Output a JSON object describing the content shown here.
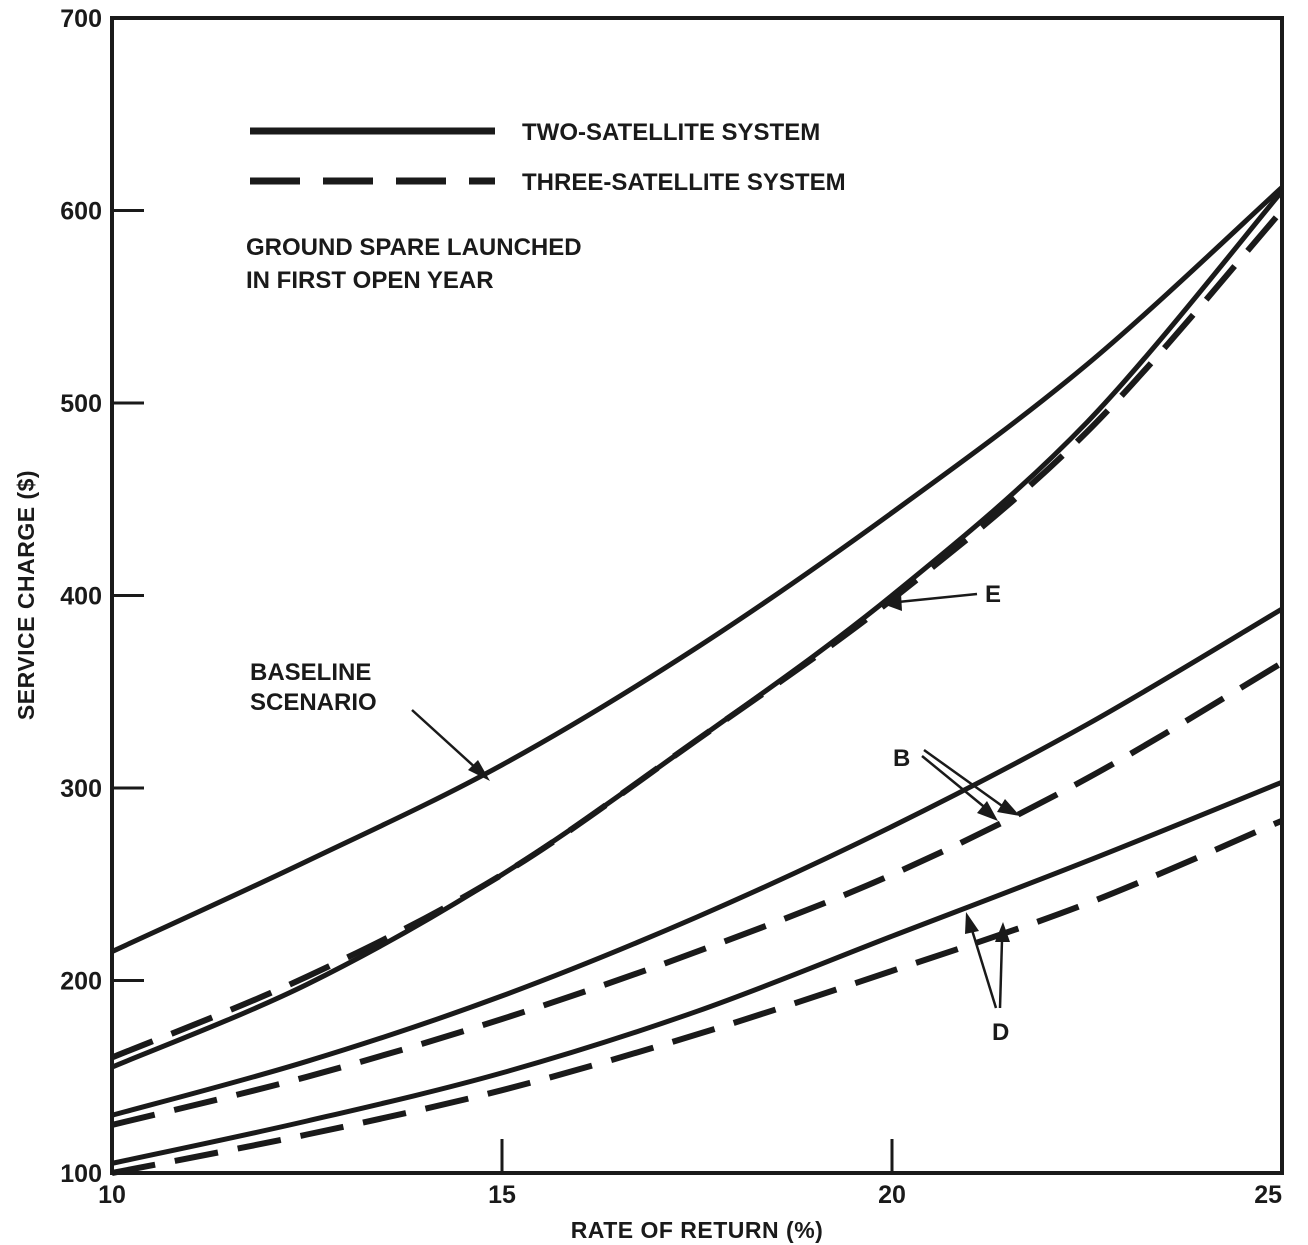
{
  "chart_data": {
    "type": "line",
    "xlabel": "RATE OF RETURN (%)",
    "ylabel": "SERVICE CHARGE ($)",
    "xlim": [
      10,
      25
    ],
    "ylim": [
      100,
      700
    ],
    "xticks": [
      "10",
      "15",
      "20",
      "25"
    ],
    "yticks": [
      "100",
      "200",
      "300",
      "400",
      "500",
      "600",
      "700"
    ],
    "grid": false,
    "legend_position": "top-left",
    "legend": [
      {
        "label": "TWO-SATELLITE SYSTEM",
        "style": "solid"
      },
      {
        "label": "THREE-SATELLITE SYSTEM",
        "style": "dashed"
      }
    ],
    "note": [
      "GROUND SPARE LAUNCHED",
      "IN FIRST OPEN YEAR"
    ],
    "annotations": [
      {
        "text": [
          "BASELINE",
          "SCENARIO"
        ]
      },
      {
        "text": [
          "E"
        ]
      },
      {
        "text": [
          "B"
        ]
      },
      {
        "text": [
          "D"
        ]
      }
    ],
    "series": [
      {
        "style": "solid",
        "x": [
          10,
          12.5,
          15,
          17.5,
          20,
          22.5,
          25
        ],
        "values": [
          215,
          262,
          312,
          373,
          443,
          520,
          612
        ]
      },
      {
        "style": "solid",
        "x": [
          10,
          12.5,
          15,
          17.5,
          20,
          22.5,
          25
        ],
        "values": [
          155,
          198,
          255,
          325,
          400,
          490,
          610
        ]
      },
      {
        "style": "dashed",
        "x": [
          10,
          12.5,
          15,
          17.5,
          20,
          22.5,
          25
        ],
        "values": [
          160,
          202,
          255,
          325,
          398,
          485,
          600
        ]
      },
      {
        "style": "solid",
        "x": [
          10,
          12.5,
          15,
          17.5,
          20,
          22.5,
          25
        ],
        "values": [
          130,
          158,
          192,
          233,
          280,
          333,
          393
        ]
      },
      {
        "style": "dashed",
        "x": [
          10,
          12.5,
          15,
          17.5,
          20,
          22.5,
          25
        ],
        "values": [
          125,
          150,
          180,
          215,
          255,
          305,
          365
        ]
      },
      {
        "style": "solid",
        "x": [
          10,
          12.5,
          15,
          17.5,
          20,
          22.5,
          25
        ],
        "values": [
          105,
          127,
          152,
          184,
          223,
          262,
          303
        ]
      },
      {
        "style": "dashed",
        "x": [
          10,
          12.5,
          15,
          17.5,
          20,
          22.5,
          25
        ],
        "values": [
          100,
          120,
          143,
          172,
          205,
          240,
          283
        ]
      }
    ]
  }
}
